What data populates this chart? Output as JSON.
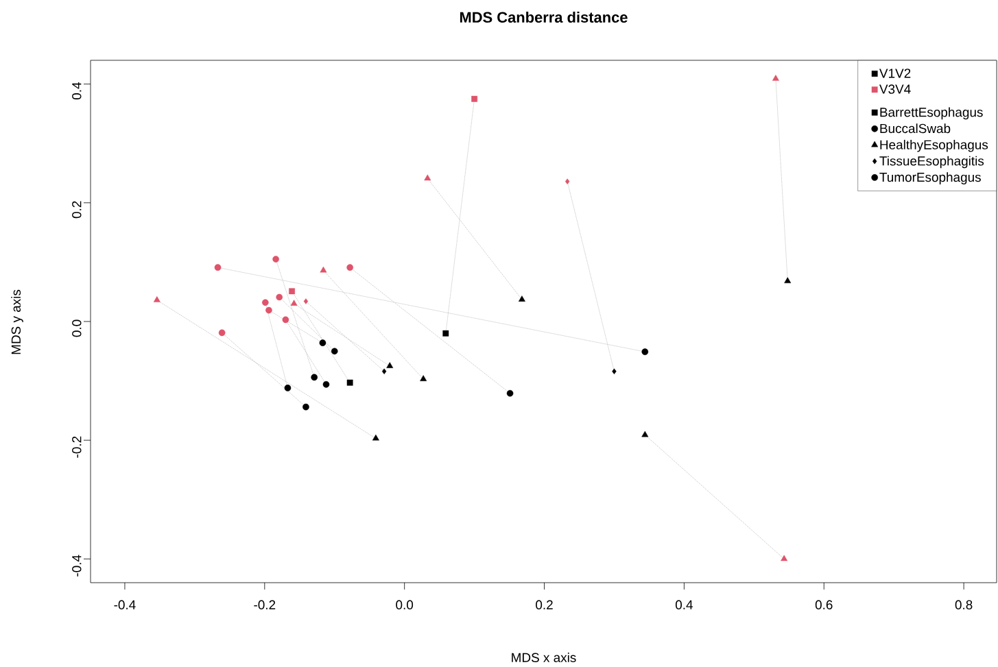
{
  "chart_data": {
    "type": "scatter",
    "title": "MDS Canberra distance",
    "xlabel": "MDS x axis",
    "ylabel": "MDS y axis",
    "xlim": [
      -0.449,
      0.847
    ],
    "ylim": [
      -0.44,
      0.44
    ],
    "xticks": [
      -0.4,
      -0.2,
      {
        "value": 0,
        "label": "0.0"
      },
      0.2,
      0.4,
      0.6,
      0.8
    ],
    "yticks": [
      -0.4,
      -0.2,
      {
        "value": 0,
        "label": "0.0"
      },
      0.2,
      0.4
    ],
    "legend": "top right",
    "grid": false,
    "series": [
      {
        "name": "V1V2",
        "marker": "square",
        "color": "#000000"
      },
      {
        "name": "V3V4",
        "marker": "square",
        "color": "#df536b"
      },
      {
        "type": "line",
        "color": "#bebebe",
        "line_style": "dotted",
        "marker": "none",
        "x": [
          -0.161,
          -0.078,
          null,
          0.1,
          0.059
        ],
        "values": [
          0.051,
          -0.103,
          null,
          0.375,
          -0.02
        ]
      },
      {
        "type": "line",
        "color": "#bebebe",
        "line_style": "dotted",
        "marker": "none",
        "x": [
          -0.267,
          0.344,
          null,
          -0.184,
          -0.129,
          null,
          -0.179,
          -0.1,
          null,
          -0.199,
          -0.167,
          null,
          -0.194,
          -0.117,
          null,
          -0.17,
          -0.112
        ],
        "values": [
          0.091,
          -0.051,
          null,
          0.105,
          -0.094,
          null,
          0.041,
          -0.05,
          null,
          0.032,
          -0.112,
          null,
          0.019,
          -0.036,
          null,
          0.003,
          -0.106
        ]
      },
      {
        "type": "line",
        "color": "#bebebe",
        "line_style": "dotted",
        "marker": "none",
        "x": [
          -0.354,
          -0.041,
          null,
          -0.116,
          0.027,
          null,
          -0.158,
          -0.021,
          null,
          0.033,
          0.168,
          null,
          0.531,
          0.548,
          null,
          0.543,
          0.344
        ],
        "values": [
          0.036,
          -0.197,
          null,
          0.086,
          -0.097,
          null,
          0.03,
          -0.075,
          null,
          0.241,
          0.037,
          null,
          0.409,
          0.068,
          null,
          -0.4,
          -0.191
        ]
      },
      {
        "type": "line",
        "color": "#bebebe",
        "line_style": "dotted",
        "marker": "none",
        "x": [
          -0.141,
          -0.029,
          null,
          0.233,
          0.3
        ],
        "values": [
          0.034,
          -0.084,
          null,
          0.236,
          -0.084
        ]
      },
      {
        "type": "line",
        "color": "#bebebe",
        "line_style": "dotted",
        "marker": "none",
        "x": [
          -0.078,
          0.151,
          null,
          -0.261,
          -0.141
        ],
        "values": [
          0.091,
          -0.121,
          null,
          -0.019,
          -0.144
        ]
      },
      {
        "name": "BarrettEsophagus",
        "marker": "square",
        "color": "#000000",
        "x": [
          -0.161,
          0.1,
          -0.078,
          0.059
        ],
        "values": [
          0.051,
          0.375,
          -0.103,
          -0.02
        ],
        "colors": [
          "#df536b",
          "#df536b",
          "#000000",
          "#000000"
        ]
      },
      {
        "name": "BuccalSwab",
        "marker": "circle",
        "color": "#000000",
        "x": [
          -0.267,
          -0.184,
          -0.179,
          -0.199,
          -0.194,
          -0.17,
          0.344,
          -0.129,
          -0.1,
          -0.167,
          -0.117,
          -0.112
        ],
        "values": [
          0.091,
          0.105,
          0.041,
          0.032,
          0.019,
          0.003,
          -0.051,
          -0.094,
          -0.05,
          -0.112,
          -0.036,
          -0.106
        ],
        "colors": [
          "#df536b",
          "#df536b",
          "#df536b",
          "#df536b",
          "#df536b",
          "#df536b",
          "#000000",
          "#000000",
          "#000000",
          "#000000",
          "#000000",
          "#000000"
        ]
      },
      {
        "name": "HealthyEsophagus",
        "marker": "triangle",
        "color": "#000000",
        "x": [
          -0.354,
          -0.116,
          -0.158,
          0.033,
          0.531,
          0.543,
          -0.041,
          0.027,
          -0.021,
          0.168,
          0.548,
          0.344
        ],
        "values": [
          0.036,
          0.086,
          0.03,
          0.241,
          0.409,
          -0.4,
          -0.197,
          -0.097,
          -0.075,
          0.037,
          0.068,
          -0.191
        ],
        "colors": [
          "#df536b",
          "#df536b",
          "#df536b",
          "#df536b",
          "#df536b",
          "#df536b",
          "#000000",
          "#000000",
          "#000000",
          "#000000",
          "#000000",
          "#000000"
        ]
      },
      {
        "name": "TissueEsophagitis",
        "marker": "diamond",
        "color": "#000000",
        "x": [
          -0.141,
          0.233,
          -0.029,
          0.3
        ],
        "values": [
          0.034,
          0.236,
          -0.084,
          -0.084
        ],
        "colors": [
          "#df536b",
          "#df536b",
          "#000000",
          "#000000"
        ]
      },
      {
        "name": "TumorEsophagus",
        "marker": "circle",
        "color": "#000000",
        "x": [
          -0.078,
          -0.261,
          0.151,
          -0.141
        ],
        "values": [
          0.091,
          -0.019,
          -0.121,
          -0.144
        ],
        "colors": [
          "#df536b",
          "#df536b",
          "#000000",
          "#000000"
        ]
      }
    ]
  }
}
